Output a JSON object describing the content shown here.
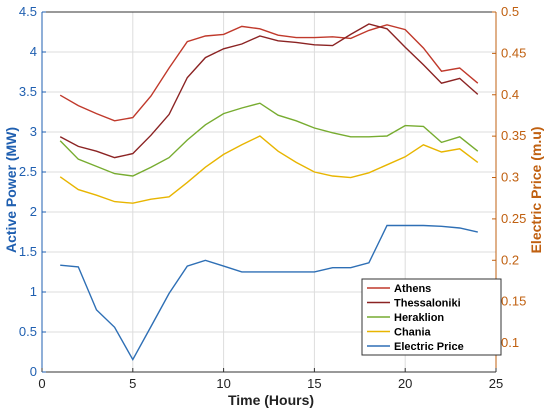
{
  "chart_data": {
    "type": "line",
    "title": "",
    "xlabel": "Time (Hours)",
    "ylabel_left": "Active Power (MW)",
    "ylabel_right": "Electric Price (m.u)",
    "xlim": [
      0,
      25
    ],
    "ylim_left": [
      0,
      4.5
    ],
    "ylim_right": [
      0.065,
      0.5
    ],
    "x_ticks": [
      0,
      5,
      10,
      15,
      20,
      25
    ],
    "y_ticks_left": [
      0,
      0.5,
      1,
      1.5,
      2,
      2.5,
      3,
      3.5,
      4,
      4.5
    ],
    "y_ticks_right": [
      0.1,
      0.15,
      0.2,
      0.25,
      0.3,
      0.35,
      0.4,
      0.45,
      0.5
    ],
    "grid": true,
    "legend_position": "bottom-right",
    "x": [
      1,
      2,
      3,
      4,
      5,
      6,
      7,
      8,
      9,
      10,
      11,
      12,
      13,
      14,
      15,
      16,
      17,
      18,
      19,
      20,
      21,
      22,
      23,
      24
    ],
    "colors": {
      "left_axis": "#1f5fb0",
      "right_axis": "#c06010",
      "grid": "#dddddd"
    },
    "series": [
      {
        "name": "Athens",
        "axis": "left",
        "color": "#c0392b",
        "values": [
          3.46,
          3.33,
          3.23,
          3.14,
          3.18,
          3.45,
          3.8,
          4.13,
          4.2,
          4.22,
          4.32,
          4.29,
          4.21,
          4.18,
          4.18,
          4.19,
          4.17,
          4.27,
          4.34,
          4.28,
          4.05,
          3.76,
          3.8,
          3.61
        ]
      },
      {
        "name": "Thessaloniki",
        "axis": "left",
        "color": "#8b2323",
        "values": [
          2.94,
          2.82,
          2.76,
          2.68,
          2.73,
          2.96,
          3.22,
          3.68,
          3.93,
          4.04,
          4.1,
          4.2,
          4.14,
          4.12,
          4.09,
          4.08,
          4.22,
          4.35,
          4.29,
          4.06,
          3.84,
          3.61,
          3.67,
          3.47
        ]
      },
      {
        "name": "Heraklion",
        "axis": "left",
        "color": "#77ac30",
        "values": [
          2.89,
          2.66,
          2.57,
          2.48,
          2.45,
          2.56,
          2.68,
          2.9,
          3.09,
          3.23,
          3.3,
          3.36,
          3.21,
          3.14,
          3.05,
          2.99,
          2.94,
          2.94,
          2.95,
          3.08,
          3.07,
          2.87,
          2.94,
          2.76
        ]
      },
      {
        "name": "Chania",
        "axis": "left",
        "color": "#e8b500",
        "values": [
          2.44,
          2.28,
          2.21,
          2.13,
          2.11,
          2.16,
          2.19,
          2.37,
          2.56,
          2.72,
          2.84,
          2.95,
          2.76,
          2.62,
          2.5,
          2.45,
          2.43,
          2.49,
          2.59,
          2.69,
          2.84,
          2.75,
          2.79,
          2.62
        ]
      },
      {
        "name": "Electric Price",
        "axis": "right",
        "color": "#2e6fb5",
        "values": [
          0.194,
          0.192,
          0.14,
          0.119,
          0.08,
          0.12,
          0.16,
          0.193,
          0.2,
          0.193,
          0.186,
          0.186,
          0.186,
          0.186,
          0.186,
          0.191,
          0.191,
          0.197,
          0.242,
          0.242,
          0.242,
          0.241,
          0.239,
          0.234
        ]
      }
    ]
  }
}
